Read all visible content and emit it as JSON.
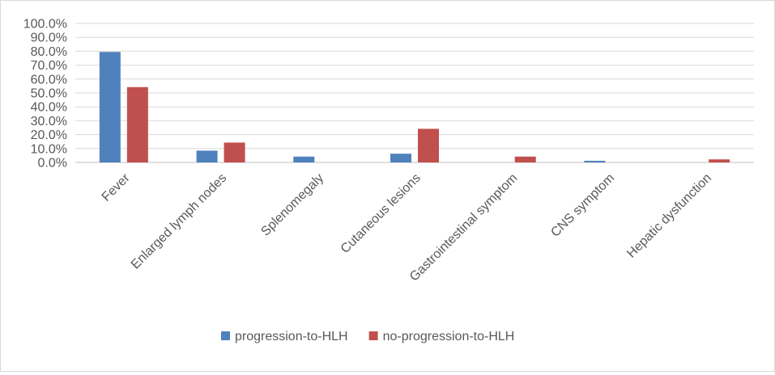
{
  "chart_data": {
    "type": "bar",
    "categories": [
      "Fever",
      "Enlarged lymph nodes",
      "Splenomegaly",
      "Cutaneous lesions",
      "Gastrointestinal symptom",
      "CNS symptom",
      "Hepatic dysfunction"
    ],
    "series": [
      {
        "name": "progression-to-HLH",
        "color": "#4f81bd",
        "values": [
          79.5,
          8.5,
          4.2,
          6.3,
          0,
          1.2,
          0
        ]
      },
      {
        "name": "no-progression-to-HLH",
        "color": "#c0504d",
        "values": [
          54.2,
          14.3,
          0,
          24.2,
          4.2,
          0,
          2.2
        ]
      }
    ],
    "ylim": [
      0,
      100
    ],
    "yticks": [
      0,
      10,
      20,
      30,
      40,
      50,
      60,
      70,
      80,
      90,
      100
    ],
    "ytick_labels": [
      "0.0%",
      "10.0%",
      "20.0%",
      "30.0%",
      "40.0%",
      "50.0%",
      "60.0%",
      "70.0%",
      "80.0%",
      "90.0%",
      "100.0%"
    ],
    "grid": true,
    "legend": "bottom"
  }
}
